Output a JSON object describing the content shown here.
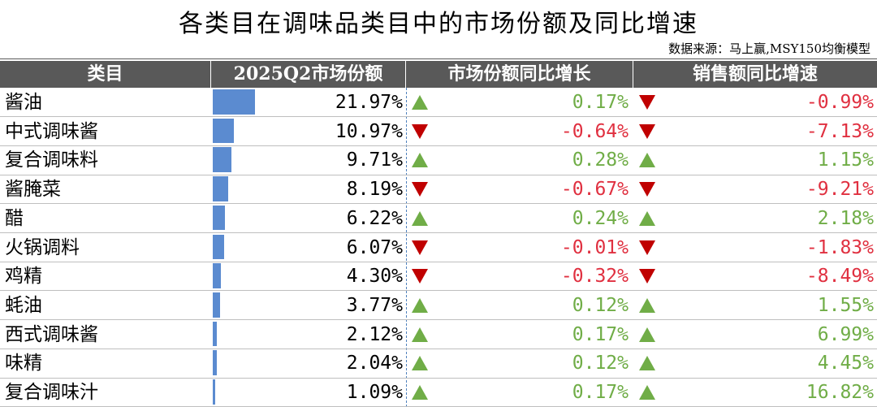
{
  "header": {
    "title": "各类目在调味品类目中的市场份额及同比增速",
    "source": "数据来源：马上赢,MSY150均衡模型"
  },
  "table": {
    "columns": [
      "类目",
      "2025Q2市场份额",
      "市场份额同比增长",
      "销售额同比增速"
    ],
    "rows": [
      {
        "name": "酱油",
        "share": {
          "value": 21.97,
          "label": "21.97%"
        },
        "share_change": {
          "value": 0.17,
          "label": "0.17%"
        },
        "sales_change": {
          "value": -0.99,
          "label": "-0.99%"
        }
      },
      {
        "name": "中式调味酱",
        "share": {
          "value": 10.97,
          "label": "10.97%"
        },
        "share_change": {
          "value": -0.64,
          "label": "-0.64%"
        },
        "sales_change": {
          "value": -7.13,
          "label": "-7.13%"
        }
      },
      {
        "name": "复合调味料",
        "share": {
          "value": 9.71,
          "label": "9.71%"
        },
        "share_change": {
          "value": 0.28,
          "label": "0.28%"
        },
        "sales_change": {
          "value": 1.15,
          "label": "1.15%"
        }
      },
      {
        "name": "酱腌菜",
        "share": {
          "value": 8.19,
          "label": "8.19%"
        },
        "share_change": {
          "value": -0.67,
          "label": "-0.67%"
        },
        "sales_change": {
          "value": -9.21,
          "label": "-9.21%"
        }
      },
      {
        "name": "醋",
        "share": {
          "value": 6.22,
          "label": "6.22%"
        },
        "share_change": {
          "value": 0.24,
          "label": "0.24%"
        },
        "sales_change": {
          "value": 2.18,
          "label": "2.18%"
        }
      },
      {
        "name": "火锅调料",
        "share": {
          "value": 6.07,
          "label": "6.07%"
        },
        "share_change": {
          "value": -0.01,
          "label": "-0.01%"
        },
        "sales_change": {
          "value": -1.83,
          "label": "-1.83%"
        }
      },
      {
        "name": "鸡精",
        "share": {
          "value": 4.3,
          "label": "4.30%"
        },
        "share_change": {
          "value": -0.32,
          "label": "-0.32%"
        },
        "sales_change": {
          "value": -8.49,
          "label": "-8.49%"
        }
      },
      {
        "name": "蚝油",
        "share": {
          "value": 3.77,
          "label": "3.77%"
        },
        "share_change": {
          "value": 0.12,
          "label": "0.12%"
        },
        "sales_change": {
          "value": 1.55,
          "label": "1.55%"
        }
      },
      {
        "name": "西式调味酱",
        "share": {
          "value": 2.12,
          "label": "2.12%"
        },
        "share_change": {
          "value": 0.17,
          "label": "0.17%"
        },
        "sales_change": {
          "value": 6.99,
          "label": "6.99%"
        }
      },
      {
        "name": "味精",
        "share": {
          "value": 2.04,
          "label": "2.04%"
        },
        "share_change": {
          "value": 0.12,
          "label": "0.12%"
        },
        "sales_change": {
          "value": 4.45,
          "label": "4.45%"
        }
      },
      {
        "name": "复合调味汁",
        "share": {
          "value": 1.09,
          "label": "1.09%"
        },
        "share_change": {
          "value": 0.17,
          "label": "0.17%"
        },
        "sales_change": {
          "value": 16.82,
          "label": "16.82%"
        }
      }
    ]
  }
}
